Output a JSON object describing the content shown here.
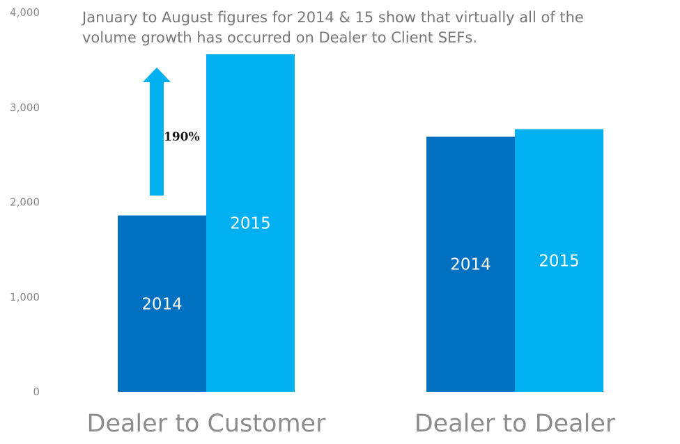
{
  "chart_data": {
    "type": "bar",
    "categories": [
      "Dealer to Customer",
      "Dealer to Dealer"
    ],
    "series": [
      {
        "name": "2014",
        "values": [
          1860,
          2690
        ],
        "color": "#0070C0"
      },
      {
        "name": "2015",
        "values": [
          3560,
          2770
        ],
        "color": "#00B0F0"
      }
    ],
    "ylim": [
      0,
      4000
    ],
    "yticks": [
      "0",
      "1,000",
      "2,000",
      "3,000",
      "4,000"
    ],
    "ytick_values": [
      0,
      1000,
      2000,
      3000,
      4000
    ],
    "grid": false,
    "legend": "none",
    "annotation": {
      "line1": "January to August figures for 2014 & 15 show that virtually all of the",
      "line2": "volume growth has occurred on Dealer to Client SEFs."
    },
    "growth_label": "190%",
    "growth_arrow_color": "#00B0F0"
  }
}
